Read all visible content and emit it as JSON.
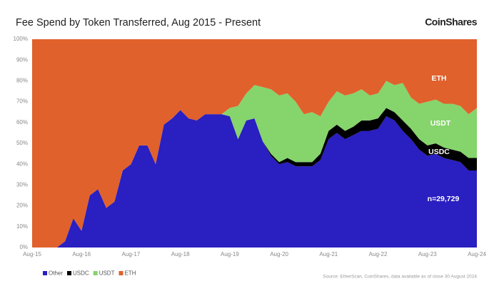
{
  "chart_data": {
    "type": "stacked_area",
    "title": "Fee Spend by Token Transferred, Aug 2015 - Present",
    "brand": "CoinShares",
    "source": "Source: EtherScan, CoinShares, data available as of close 30 August 2024",
    "annotations": [
      "ETH",
      "USDT",
      "USDC",
      "n=29,729"
    ],
    "categories": [
      "Aug-15",
      null,
      null,
      null,
      null,
      null,
      "Aug-16",
      null,
      null,
      null,
      null,
      null,
      "Aug-17",
      null,
      null,
      null,
      null,
      null,
      "Aug-18",
      null,
      null,
      null,
      null,
      null,
      "Aug-19",
      null,
      null,
      null,
      null,
      null,
      "Aug-20",
      null,
      null,
      null,
      null,
      null,
      "Aug-21",
      null,
      null,
      null,
      null,
      null,
      "Aug-22",
      null,
      null,
      null,
      null,
      null,
      "Aug-23",
      null,
      null,
      null,
      null,
      null,
      "Aug-24"
    ],
    "series": [
      {
        "name": "Other",
        "color": "#2a1fc0",
        "values": [
          0,
          0,
          0,
          0,
          3,
          14,
          8,
          25,
          28,
          19,
          22,
          37,
          40,
          49,
          49,
          40,
          59,
          62,
          66,
          62,
          61,
          64,
          64,
          64,
          63,
          52,
          61,
          62,
          51,
          44,
          40,
          41,
          39,
          39,
          39,
          42,
          52,
          55,
          52,
          54,
          56,
          56,
          57,
          63,
          61,
          56,
          52,
          47,
          44,
          45,
          43,
          42,
          41,
          37,
          37
        ]
      },
      {
        "name": "USDC",
        "color": "#000000",
        "values": [
          0,
          0,
          0,
          0,
          0,
          0,
          0,
          0,
          0,
          0,
          0,
          0,
          0,
          0,
          0,
          0,
          0,
          0,
          0,
          0,
          0,
          0,
          0,
          0,
          0,
          0,
          0,
          0,
          0,
          1,
          1,
          2,
          2,
          2,
          2,
          3,
          4,
          4,
          4,
          4,
          5,
          5,
          5,
          4,
          4,
          5,
          5,
          5,
          5,
          5,
          5,
          5,
          5,
          6,
          6
        ]
      },
      {
        "name": "USDT",
        "color": "#86d46c",
        "values": [
          0,
          0,
          0,
          0,
          0,
          0,
          0,
          0,
          0,
          0,
          0,
          0,
          0,
          0,
          0,
          0,
          0,
          0,
          0,
          0,
          0,
          0,
          0,
          0,
          4,
          16,
          13,
          16,
          26,
          31,
          32,
          31,
          29,
          23,
          24,
          18,
          14,
          16,
          17,
          16,
          15,
          12,
          12,
          13,
          13,
          18,
          15,
          17,
          21,
          21,
          21,
          22,
          22,
          21,
          24
        ]
      },
      {
        "name": "ETH",
        "color": "#e0612c",
        "values": [
          100,
          100,
          100,
          100,
          97,
          86,
          92,
          75,
          72,
          81,
          78,
          63,
          60,
          51,
          51,
          60,
          41,
          38,
          34,
          38,
          39,
          36,
          36,
          36,
          33,
          32,
          26,
          22,
          23,
          24,
          27,
          26,
          30,
          36,
          35,
          37,
          30,
          25,
          27,
          26,
          24,
          27,
          26,
          20,
          22,
          21,
          28,
          31,
          30,
          29,
          31,
          31,
          32,
          36,
          33
        ]
      }
    ],
    "ylim": [
      0,
      100
    ],
    "yticks": [
      {
        "value": 0,
        "label": "0%"
      },
      {
        "value": 10,
        "label": "10%"
      },
      {
        "value": 20,
        "label": "20%"
      },
      {
        "value": 30,
        "label": "30%"
      },
      {
        "value": 40,
        "label": "40%"
      },
      {
        "value": 50,
        "label": "50%"
      },
      {
        "value": 60,
        "label": "60%"
      },
      {
        "value": 70,
        "label": "70%"
      },
      {
        "value": 80,
        "label": "80%"
      },
      {
        "value": 90,
        "label": "90%"
      },
      {
        "value": 100,
        "label": "100%"
      }
    ],
    "grid": false,
    "legend": "bottom-left"
  }
}
